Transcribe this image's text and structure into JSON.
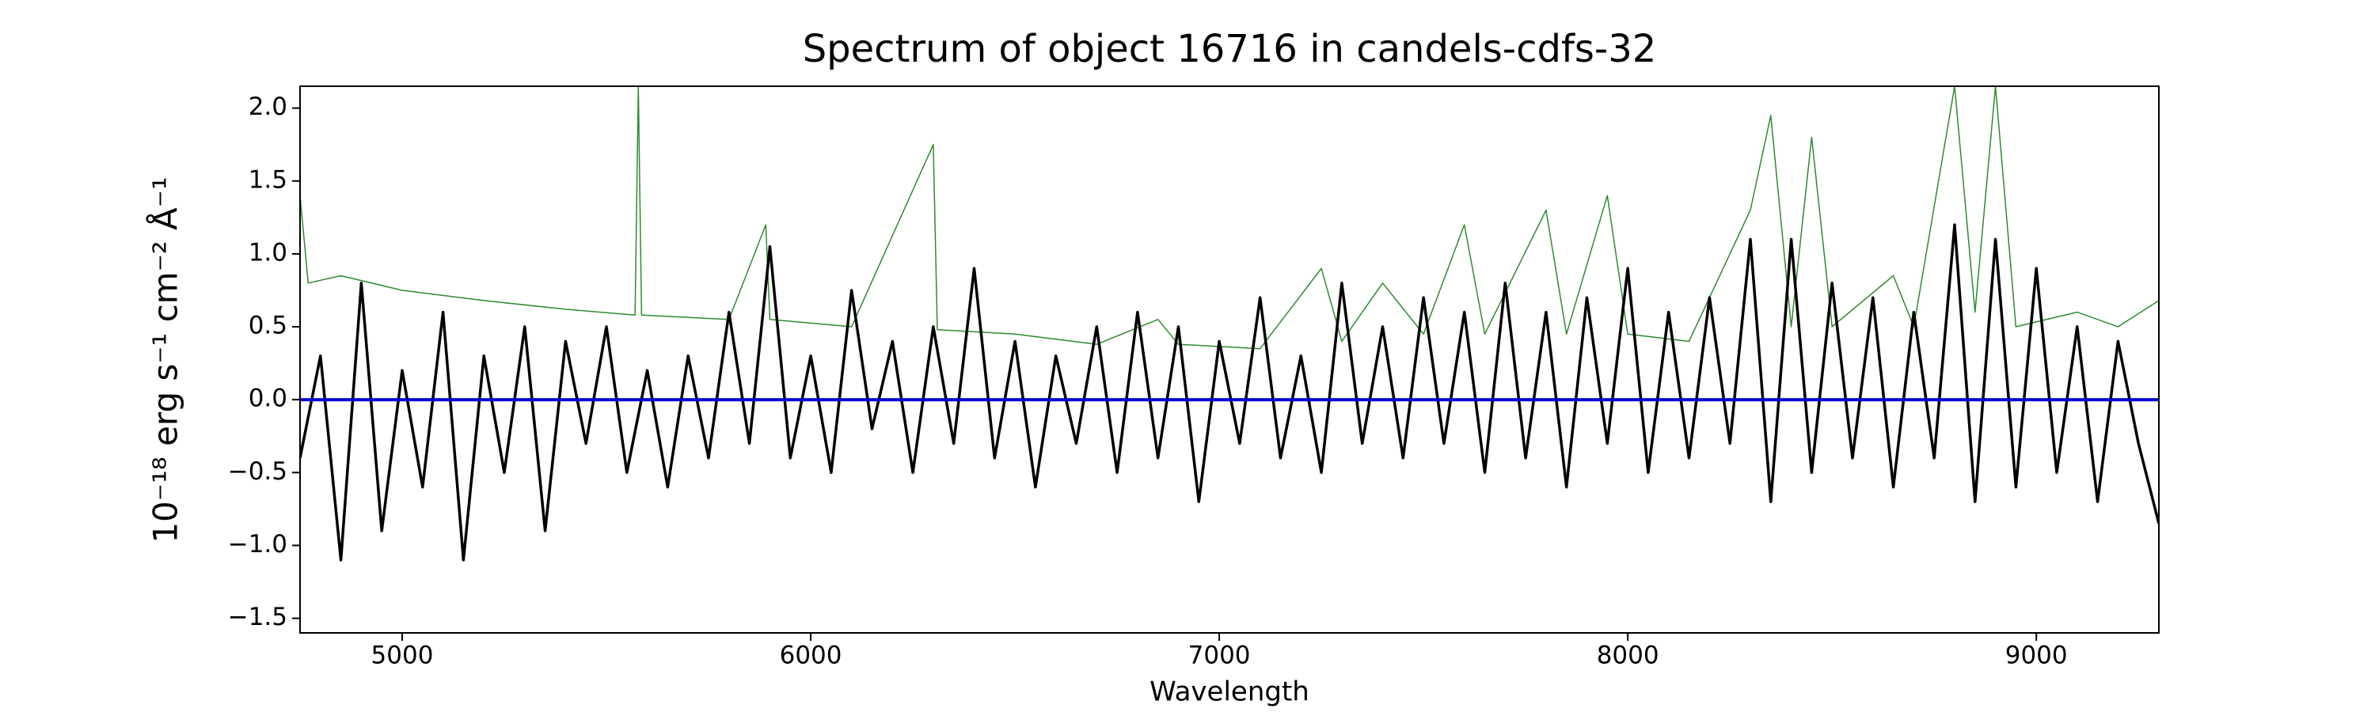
{
  "chart_data": {
    "type": "line",
    "title": "Spectrum of object 16716 in candels-cdfs-32",
    "x_label": "Wavelength",
    "y_label": "10⁻¹⁸ erg s⁻¹ cm⁻² Å⁻¹",
    "xlim": [
      4750,
      9300
    ],
    "ylim": [
      -1.6,
      2.15
    ],
    "xticks": [
      5000,
      6000,
      7000,
      8000,
      9000
    ],
    "yticks": [
      {
        "value": -1.5,
        "label": "−1.5"
      },
      {
        "value": -1,
        "label": "−1.0"
      },
      {
        "value": -0.5,
        "label": "−0.5"
      },
      {
        "value": 0,
        "label": "0.0"
      },
      {
        "value": 0.5,
        "label": "0.5"
      },
      {
        "value": 1,
        "label": "1.0"
      },
      {
        "value": 1.5,
        "label": "1.5"
      },
      {
        "value": 2,
        "label": "2.0"
      }
    ],
    "series": [
      {
        "color": "#2e8b2e",
        "x": [
          4750,
          4770,
          4850,
          5000,
          5200,
          5400,
          5570,
          5578,
          5586,
          5800,
          5890,
          5900,
          6100,
          6300,
          6310,
          6500,
          6700,
          6850,
          6900,
          7100,
          7250,
          7300,
          7400,
          7500,
          7600,
          7650,
          7800,
          7850,
          7950,
          8000,
          8150,
          8300,
          8350,
          8400,
          8450,
          8500,
          8650,
          8700,
          8800,
          8850,
          8900,
          8950,
          9100,
          9200,
          9300
        ],
        "values": [
          1.4,
          0.8,
          0.85,
          0.75,
          0.68,
          0.62,
          0.58,
          2.15,
          0.58,
          0.55,
          1.2,
          0.55,
          0.5,
          1.75,
          0.48,
          0.45,
          0.38,
          0.55,
          0.38,
          0.35,
          0.9,
          0.4,
          0.8,
          0.45,
          1.2,
          0.45,
          1.3,
          0.45,
          1.4,
          0.45,
          0.4,
          1.3,
          1.95,
          0.5,
          1.8,
          0.5,
          0.85,
          0.5,
          2.15,
          0.6,
          2.15,
          0.5,
          0.6,
          0.5,
          0.68
        ]
      },
      {
        "color": "#000000",
        "x": [
          4750,
          4800,
          4850,
          4900,
          4950,
          5000,
          5050,
          5100,
          5150,
          5200,
          5250,
          5300,
          5350,
          5400,
          5450,
          5500,
          5550,
          5600,
          5650,
          5700,
          5750,
          5800,
          5850,
          5900,
          5950,
          6000,
          6050,
          6100,
          6150,
          6200,
          6250,
          6300,
          6350,
          6400,
          6450,
          6500,
          6550,
          6600,
          6650,
          6700,
          6750,
          6800,
          6850,
          6900,
          6950,
          7000,
          7050,
          7100,
          7150,
          7200,
          7250,
          7300,
          7350,
          7400,
          7450,
          7500,
          7550,
          7600,
          7650,
          7700,
          7750,
          7800,
          7850,
          7900,
          7950,
          8000,
          8050,
          8100,
          8150,
          8200,
          8250,
          8300,
          8350,
          8400,
          8450,
          8500,
          8550,
          8600,
          8650,
          8700,
          8750,
          8800,
          8850,
          8900,
          8950,
          9000,
          9050,
          9100,
          9150,
          9200,
          9250,
          9300
        ],
        "values": [
          -0.4,
          0.3,
          -1.1,
          0.8,
          -0.9,
          0.2,
          -0.6,
          0.6,
          -1.1,
          0.3,
          -0.5,
          0.5,
          -0.9,
          0.4,
          -0.3,
          0.5,
          -0.5,
          0.2,
          -0.6,
          0.3,
          -0.4,
          0.6,
          -0.3,
          1.05,
          -0.4,
          0.3,
          -0.5,
          0.75,
          -0.2,
          0.4,
          -0.5,
          0.5,
          -0.3,
          0.9,
          -0.4,
          0.4,
          -0.6,
          0.3,
          -0.3,
          0.5,
          -0.5,
          0.6,
          -0.4,
          0.5,
          -0.7,
          0.4,
          -0.3,
          0.7,
          -0.4,
          0.3,
          -0.5,
          0.8,
          -0.3,
          0.5,
          -0.4,
          0.7,
          -0.3,
          0.6,
          -0.5,
          0.8,
          -0.4,
          0.6,
          -0.6,
          0.7,
          -0.3,
          0.9,
          -0.5,
          0.6,
          -0.4,
          0.7,
          -0.3,
          1.1,
          -0.7,
          1.1,
          -0.5,
          0.8,
          -0.4,
          0.7,
          -0.6,
          0.6,
          -0.4,
          1.2,
          -0.7,
          1.1,
          -0.6,
          0.9,
          -0.5,
          0.5,
          -0.7,
          0.4,
          -0.3,
          -0.85
        ]
      },
      {
        "color": "#0000cc",
        "x": [
          4750,
          9300
        ],
        "values": [
          0,
          0
        ]
      }
    ]
  }
}
